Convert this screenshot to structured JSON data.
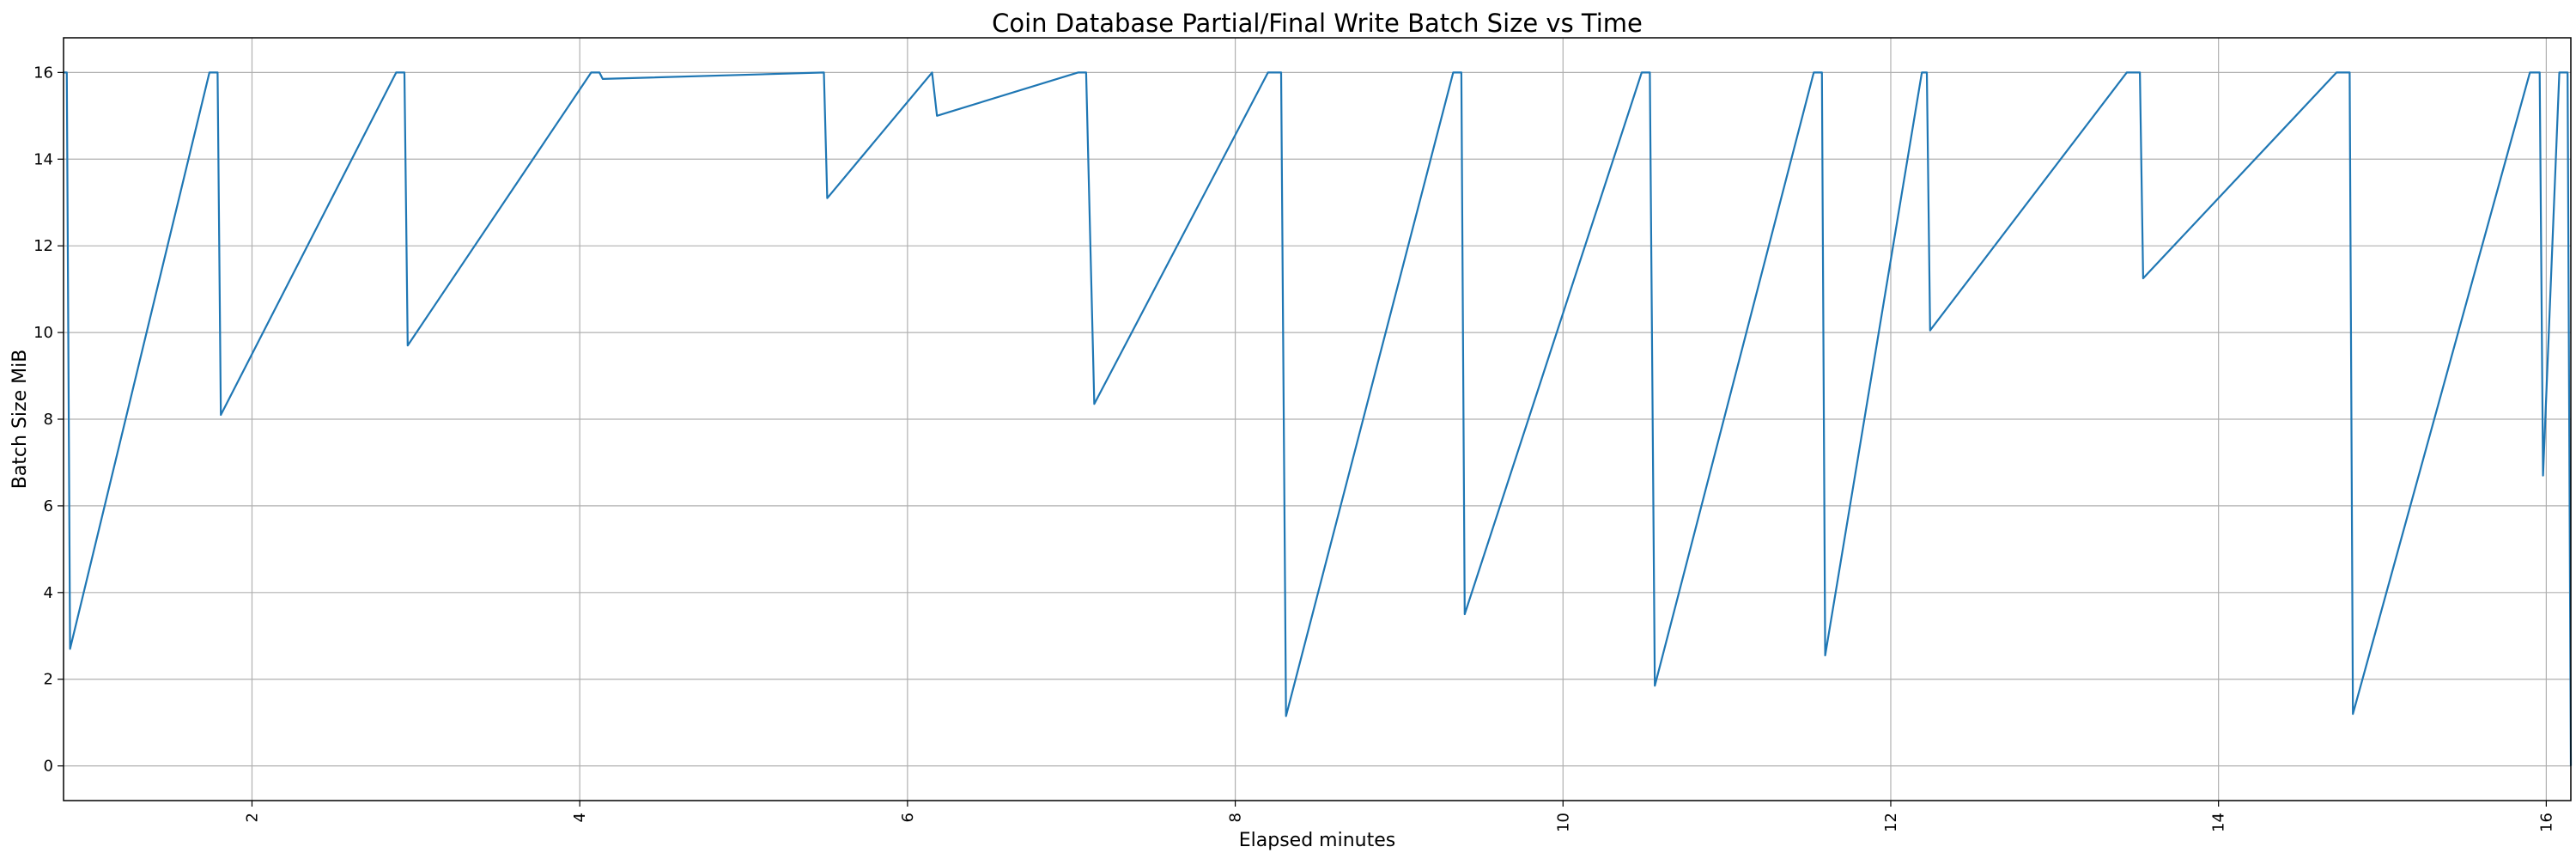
{
  "chart_data": {
    "type": "line",
    "title": "Coin Database Partial/Final Write Batch Size vs Time",
    "xlabel": "Elapsed minutes",
    "ylabel": "Batch Size MiB",
    "xlim": [
      0.85,
      16.15
    ],
    "ylim": [
      -0.8,
      16.8
    ],
    "xticks": [
      2,
      4,
      6,
      8,
      10,
      12,
      14,
      16
    ],
    "yticks": [
      0,
      2,
      4,
      6,
      8,
      10,
      12,
      14,
      16
    ],
    "xtick_rotation": "vertical",
    "grid": true,
    "series": [
      {
        "color": "#1f77b4",
        "x": [
          0.85,
          0.87,
          0.89,
          1.74,
          1.79,
          1.81,
          2.88,
          2.93,
          2.95,
          4.07,
          4.12,
          4.14,
          5.49,
          5.51,
          6.15,
          6.18,
          7.04,
          7.09,
          7.14,
          8.2,
          8.28,
          8.31,
          9.33,
          9.38,
          9.4,
          10.48,
          10.53,
          10.56,
          11.53,
          11.58,
          11.6,
          12.19,
          12.22,
          12.24,
          13.44,
          13.52,
          13.54,
          14.72,
          14.8,
          14.82,
          15.9,
          15.96,
          15.98,
          16.08,
          16.13,
          16.15
        ],
        "y": [
          16.0,
          16.0,
          2.7,
          16.0,
          16.0,
          8.1,
          16.0,
          16.0,
          9.7,
          16.0,
          16.0,
          15.85,
          16.0,
          13.1,
          16.0,
          15.0,
          16.0,
          16.0,
          8.35,
          16.0,
          16.0,
          1.15,
          16.0,
          16.0,
          3.5,
          16.0,
          16.0,
          1.85,
          16.0,
          16.0,
          2.55,
          16.0,
          16.0,
          10.05,
          16.0,
          16.0,
          11.25,
          16.0,
          16.0,
          1.2,
          16.0,
          16.0,
          6.7,
          16.0,
          16.0,
          0.0
        ]
      }
    ]
  }
}
